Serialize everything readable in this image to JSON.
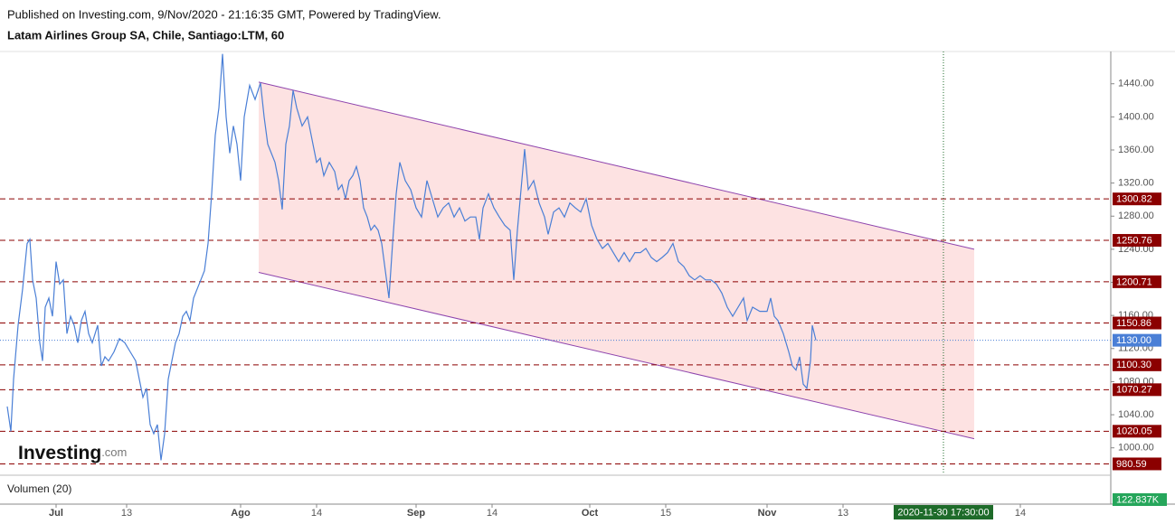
{
  "header": {
    "published": "Published on Investing.com, 9/Nov/2020 - 21:16:35 GMT, Powered by TradingView.",
    "symbol": "Latam Airlines Group SA, Chile, Santiago:LTM, 60"
  },
  "logo": {
    "brand": "Investing",
    "suffix": ".com"
  },
  "chart_data": {
    "type": "line",
    "xlim": [
      -4,
      610
    ],
    "ylim": [
      968,
      1479
    ],
    "xticks": [
      {
        "value": 27,
        "label": "Jul"
      },
      {
        "value": 66,
        "label": "13"
      },
      {
        "value": 129,
        "label": "Ago"
      },
      {
        "value": 171,
        "label": "14"
      },
      {
        "value": 226,
        "label": "Sep"
      },
      {
        "value": 268,
        "label": "14"
      },
      {
        "value": 322,
        "label": "Oct"
      },
      {
        "value": 364,
        "label": "15"
      },
      {
        "value": 420,
        "label": "Nov"
      },
      {
        "value": 462,
        "label": "13"
      },
      {
        "value": 560,
        "label": "14"
      }
    ],
    "yticks": [
      {
        "value": 1000,
        "label": "1000.00"
      },
      {
        "value": 1040,
        "label": "1040.00"
      },
      {
        "value": 1080,
        "label": "1080.00"
      },
      {
        "value": 1120,
        "label": "1120.00"
      },
      {
        "value": 1160,
        "label": "1160.00"
      },
      {
        "value": 1200,
        "label": "1200.00"
      },
      {
        "value": 1240,
        "label": "1240.00"
      },
      {
        "value": 1280,
        "label": "1280.00"
      },
      {
        "value": 1320,
        "label": "1320.00"
      },
      {
        "value": 1360,
        "label": "1360.00"
      },
      {
        "value": 1400,
        "label": "1400.00"
      },
      {
        "value": 1440,
        "label": "1440.00"
      }
    ],
    "series": [
      {
        "color": "#4a7fd6",
        "x": [
          0,
          2,
          3.5,
          6,
          8.5,
          11,
          12.5,
          14,
          16,
          18,
          19.5,
          21,
          23,
          25,
          27,
          29,
          31,
          33,
          35,
          37,
          39,
          41,
          43,
          45,
          47,
          50,
          52,
          54,
          56,
          59,
          62,
          65,
          68,
          71,
          73,
          75,
          77,
          79,
          81,
          83,
          85,
          87,
          89,
          91,
          93,
          95,
          97,
          99,
          101,
          103,
          105,
          107,
          109,
          111,
          113,
          115,
          117,
          119,
          121,
          123,
          125,
          127,
          129,
          131,
          134,
          137,
          140,
          142,
          144,
          146,
          148,
          150,
          152,
          154,
          156,
          158,
          160,
          163,
          166,
          169,
          171,
          173,
          175,
          178,
          181,
          183,
          185,
          187,
          189,
          191,
          193,
          195,
          197,
          199,
          201,
          203,
          205,
          207,
          209,
          211,
          213,
          215,
          217,
          220,
          223,
          226,
          229,
          232,
          235,
          238,
          241,
          244,
          247,
          250,
          253,
          256,
          259,
          261,
          263,
          266,
          269,
          272,
          275,
          278,
          280,
          282,
          284,
          286,
          288,
          291,
          294,
          297,
          299,
          302,
          305,
          308,
          311,
          314,
          317,
          320,
          323,
          326,
          329,
          332,
          335,
          338,
          341,
          344,
          347,
          350,
          353,
          356,
          359,
          362,
          365,
          368,
          371,
          374,
          377,
          380,
          383,
          386,
          389,
          392,
          395,
          398,
          401,
          404,
          407,
          409,
          412,
          416,
          420,
          422,
          424,
          426,
          429,
          432,
          434,
          436,
          438,
          440,
          442,
          444,
          445,
          447
        ],
        "values": [
          1050,
          1020,
          1083,
          1148,
          1192,
          1247,
          1252,
          1203,
          1181,
          1127,
          1105,
          1170,
          1181,
          1159,
          1225,
          1198,
          1203,
          1138,
          1159,
          1148,
          1127,
          1154,
          1165,
          1138,
          1127,
          1148,
          1099,
          1110,
          1105,
          1116,
          1132,
          1127,
          1116,
          1105,
          1083,
          1061,
          1072,
          1028,
          1017,
          1028,
          985,
          1017,
          1083,
          1105,
          1127,
          1138,
          1159,
          1165,
          1154,
          1181,
          1192,
          1203,
          1214,
          1247,
          1307,
          1378,
          1411,
          1476,
          1400,
          1356,
          1389,
          1367,
          1323,
          1400,
          1438,
          1421,
          1441,
          1400,
          1367,
          1356,
          1345,
          1323,
          1288,
          1367,
          1389,
          1432,
          1411,
          1389,
          1400,
          1367,
          1345,
          1350,
          1329,
          1345,
          1334,
          1312,
          1318,
          1301,
          1323,
          1329,
          1340,
          1323,
          1290,
          1279,
          1263,
          1269,
          1263,
          1247,
          1214,
          1181,
          1247,
          1307,
          1345,
          1323,
          1312,
          1290,
          1279,
          1323,
          1301,
          1279,
          1290,
          1296,
          1279,
          1290,
          1274,
          1279,
          1279,
          1252,
          1290,
          1307,
          1290,
          1279,
          1269,
          1263,
          1203,
          1263,
          1312,
          1361,
          1312,
          1323,
          1296,
          1279,
          1258,
          1285,
          1290,
          1279,
          1296,
          1290,
          1285,
          1301,
          1269,
          1252,
          1241,
          1247,
          1236,
          1225,
          1236,
          1225,
          1236,
          1236,
          1241,
          1230,
          1225,
          1230,
          1236,
          1247,
          1225,
          1219,
          1208,
          1203,
          1208,
          1203,
          1203,
          1198,
          1187,
          1170,
          1159,
          1170,
          1181,
          1154,
          1170,
          1165,
          1165,
          1181,
          1159,
          1154,
          1138,
          1116,
          1099,
          1094,
          1110,
          1077,
          1072,
          1105,
          1148,
          1130
        ]
      }
    ],
    "levels": {
      "color": "#8b0000",
      "values": [
        {
          "value": 1300.82,
          "label": "1300.82"
        },
        {
          "value": 1250.76,
          "label": "1250.76"
        },
        {
          "value": 1200.71,
          "label": "1200.71"
        },
        {
          "value": 1150.86,
          "label": "1150.86"
        },
        {
          "value": 1100.3,
          "label": "1100.30"
        },
        {
          "value": 1070.27,
          "label": "1070.27"
        },
        {
          "value": 1020.05,
          "label": "1020.05"
        },
        {
          "value": 980.59,
          "label": "980.59"
        }
      ]
    },
    "last_price": {
      "value": 1130,
      "label": "1130.00",
      "color": "#4a7fd6"
    },
    "channel": {
      "color": "#8e44ad",
      "fill": "#fde2e2",
      "upper": {
        "x": [
          139,
          534.5
        ],
        "y": [
          1442,
          1240
        ]
      },
      "lower": {
        "x": [
          139,
          534.5
        ],
        "y": [
          1212,
          1011
        ]
      }
    },
    "crosshair": {
      "x": 517.5,
      "label": "2020-11-30 17:30:00",
      "color": "#1e6b2a"
    },
    "volume": {
      "title": "Volumen (20)",
      "last": "122.837K",
      "color": "#26a65b"
    }
  }
}
